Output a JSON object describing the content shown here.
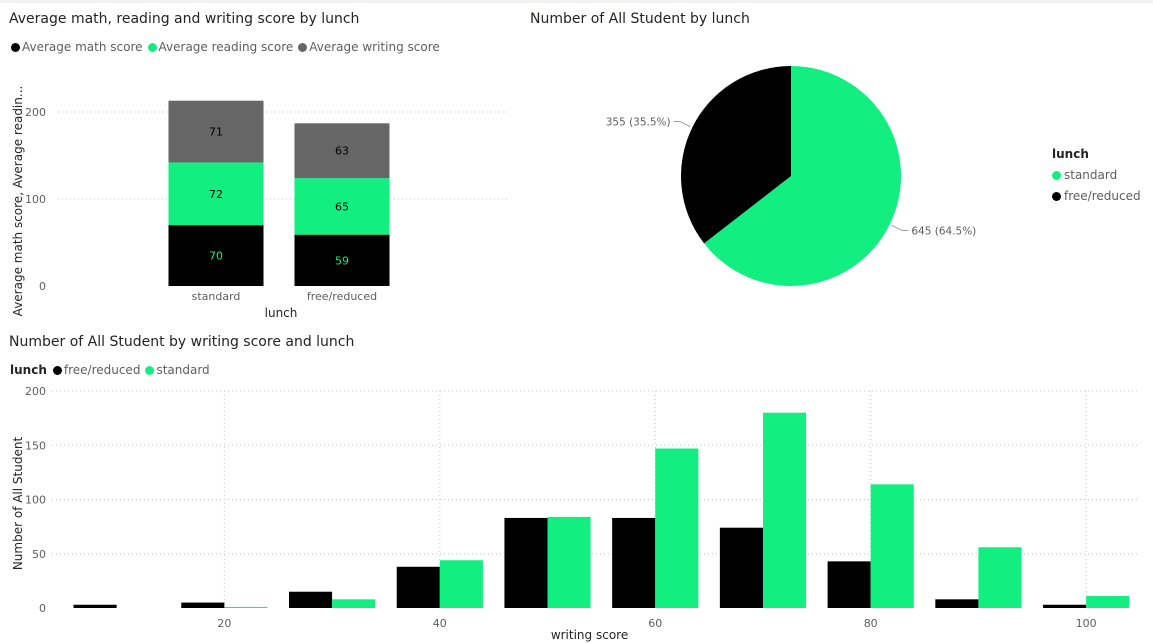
{
  "colors": {
    "black": "#000000",
    "green": "#12EF80",
    "gray": "#666666",
    "grid": "#c8c6c4",
    "axis_text": "#605e5c"
  },
  "chart_data": [
    {
      "type": "bar",
      "stacked": true,
      "title": "Average math, reading and writing score by lunch",
      "categories": [
        "standard",
        "free/reduced"
      ],
      "series": [
        {
          "name": "Average math score",
          "color": "#000000",
          "values": [
            70,
            59
          ]
        },
        {
          "name": "Average reading score",
          "color": "#12EF80",
          "values": [
            72,
            65
          ]
        },
        {
          "name": "Average writing score",
          "color": "#666666",
          "values": [
            71,
            63
          ]
        }
      ],
      "xlabel": "lunch",
      "ylabel": "Average math score, Average readin...",
      "ylim": [
        0,
        225
      ],
      "yticks": [
        "0",
        "100",
        "200"
      ],
      "grid": true
    },
    {
      "type": "pie",
      "title": "Number of All Student by lunch",
      "legend_title": "lunch",
      "slices": [
        {
          "label": "standard",
          "value": 645,
          "display": "645 (64.5%)",
          "color": "#12EF80"
        },
        {
          "label": "free/reduced",
          "value": 355,
          "display": "355 (35.5%)",
          "color": "#000000"
        }
      ]
    },
    {
      "type": "bar",
      "title": "Number of All Student by writing score and lunch",
      "legend_title": "lunch",
      "x": [
        10,
        20,
        30,
        40,
        50,
        60,
        70,
        80,
        90,
        100
      ],
      "series": [
        {
          "name": "free/reduced",
          "color": "#000000",
          "values": [
            3,
            5,
            15,
            38,
            83,
            83,
            74,
            43,
            8,
            3
          ]
        },
        {
          "name": "standard",
          "color": "#12EF80",
          "values": [
            0,
            1,
            8,
            44,
            84,
            147,
            180,
            114,
            56,
            11
          ]
        }
      ],
      "xlabel": "writing score",
      "ylabel": "Number of All Student",
      "ylim": [
        0,
        200
      ],
      "yticks": [
        "0",
        "50",
        "100",
        "150",
        "200"
      ],
      "xticks": [
        "20",
        "40",
        "60",
        "80",
        "100"
      ],
      "xlim": [
        4,
        105
      ],
      "grid": true
    }
  ]
}
